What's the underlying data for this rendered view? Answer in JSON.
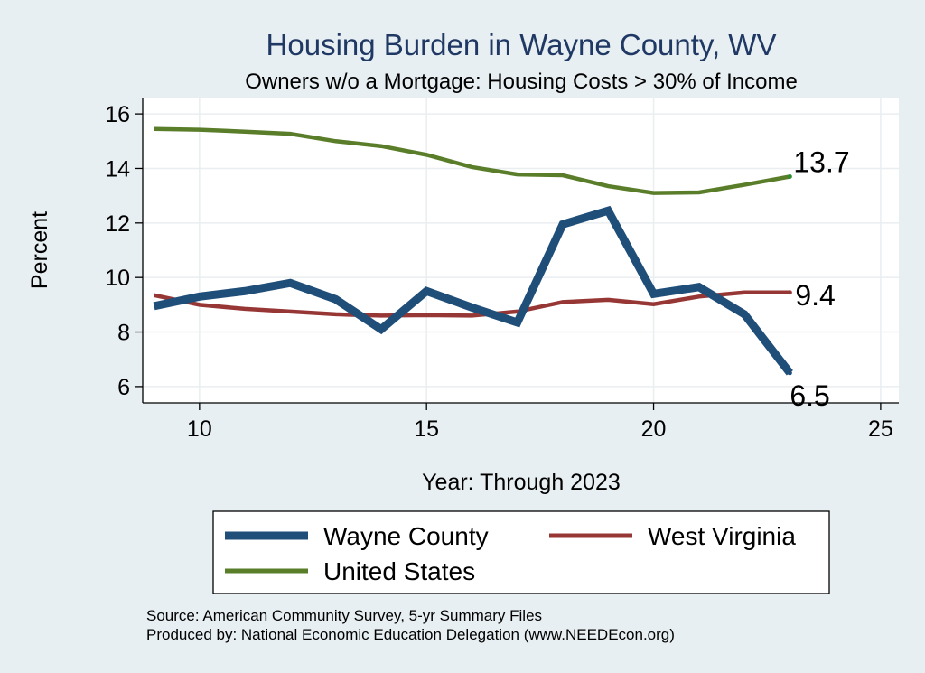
{
  "chart_data": {
    "type": "line",
    "title": "Housing Burden in Wayne County, WV",
    "subtitle": "Owners w/o a Mortgage: Housing Costs > 30% of Income",
    "xlabel": "Year: Through 2023",
    "ylabel": "Percent",
    "xlim": [
      8.75,
      25.4
    ],
    "ylim": [
      5.4,
      16.6
    ],
    "xticks": [
      10,
      15,
      20,
      25
    ],
    "yticks": [
      6,
      8,
      10,
      12,
      14,
      16
    ],
    "grid": true,
    "legend_position": "bottom",
    "series": [
      {
        "name": "Wayne County",
        "color": "#1f4e79",
        "x": [
          9,
          10,
          11,
          12,
          13,
          14,
          15,
          16,
          17,
          18,
          19,
          20,
          21,
          22,
          23
        ],
        "values": [
          8.95,
          9.3,
          9.5,
          9.8,
          9.2,
          8.1,
          9.5,
          8.9,
          8.35,
          11.95,
          12.45,
          9.4,
          9.65,
          8.65,
          6.5
        ],
        "end_label": "6.5"
      },
      {
        "name": "West Virginia",
        "color": "#973735",
        "x": [
          9,
          10,
          11,
          12,
          13,
          14,
          15,
          16,
          17,
          18,
          19,
          20,
          21,
          22,
          23
        ],
        "values": [
          9.35,
          9.0,
          8.85,
          8.75,
          8.65,
          8.6,
          8.62,
          8.6,
          8.75,
          9.1,
          9.18,
          9.02,
          9.3,
          9.45,
          9.45
        ],
        "end_label": "9.4"
      },
      {
        "name": "United States",
        "color": "#5a7d2a",
        "x": [
          9,
          10,
          11,
          12,
          13,
          14,
          15,
          16,
          17,
          18,
          19,
          20,
          21,
          22,
          23
        ],
        "values": [
          15.45,
          15.42,
          15.35,
          15.27,
          15.0,
          14.82,
          14.5,
          14.05,
          13.78,
          13.75,
          13.35,
          13.1,
          13.12,
          13.4,
          13.7
        ],
        "end_label": "13.7"
      }
    ],
    "source_lines": [
      "Source: American Community Survey, 5-yr Summary Files",
      "Produced by: National Economic Education Delegation (www.NEEDEcon.org)"
    ]
  }
}
